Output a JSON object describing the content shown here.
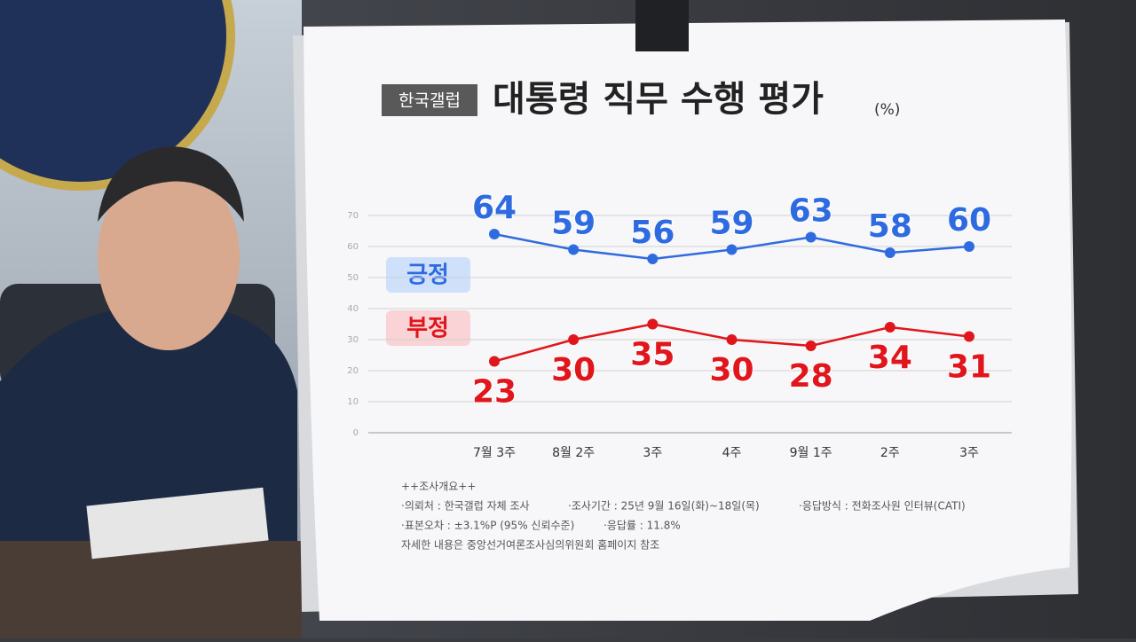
{
  "chart_data": {
    "type": "line",
    "source": "한국갤럽",
    "title": "대통령 직무 수행 평가",
    "unit": "(%)",
    "categories": [
      "7월 3주",
      "8월 2주",
      "3주",
      "4주",
      "9월 1주",
      "2주",
      "3주"
    ],
    "series": [
      {
        "name": "긍정",
        "color": "#2f6be0",
        "values": [
          64,
          59,
          56,
          59,
          63,
          58,
          60
        ]
      },
      {
        "name": "부정",
        "color": "#e0161c",
        "values": [
          23,
          30,
          35,
          30,
          28,
          34,
          31
        ]
      }
    ],
    "ylim": [
      0,
      70
    ],
    "yticks": [
      0,
      10,
      20,
      30,
      40,
      50,
      60,
      70
    ],
    "grid": true,
    "notes": [
      "++조사개요++",
      "·의뢰처 : 한국갤럽 자체 조사",
      "·조사기간 : 25년 9월 16일(화)~18일(목)",
      "·응답방식 : 전화조사원 인터뷰(CATI)",
      "·표본오차 : ±3.1%P (95% 신뢰수준)",
      "·응답률 : 11.8%",
      "자세한 내용은 중앙선거여론조사심의위원회 홈페이지 참조"
    ]
  }
}
